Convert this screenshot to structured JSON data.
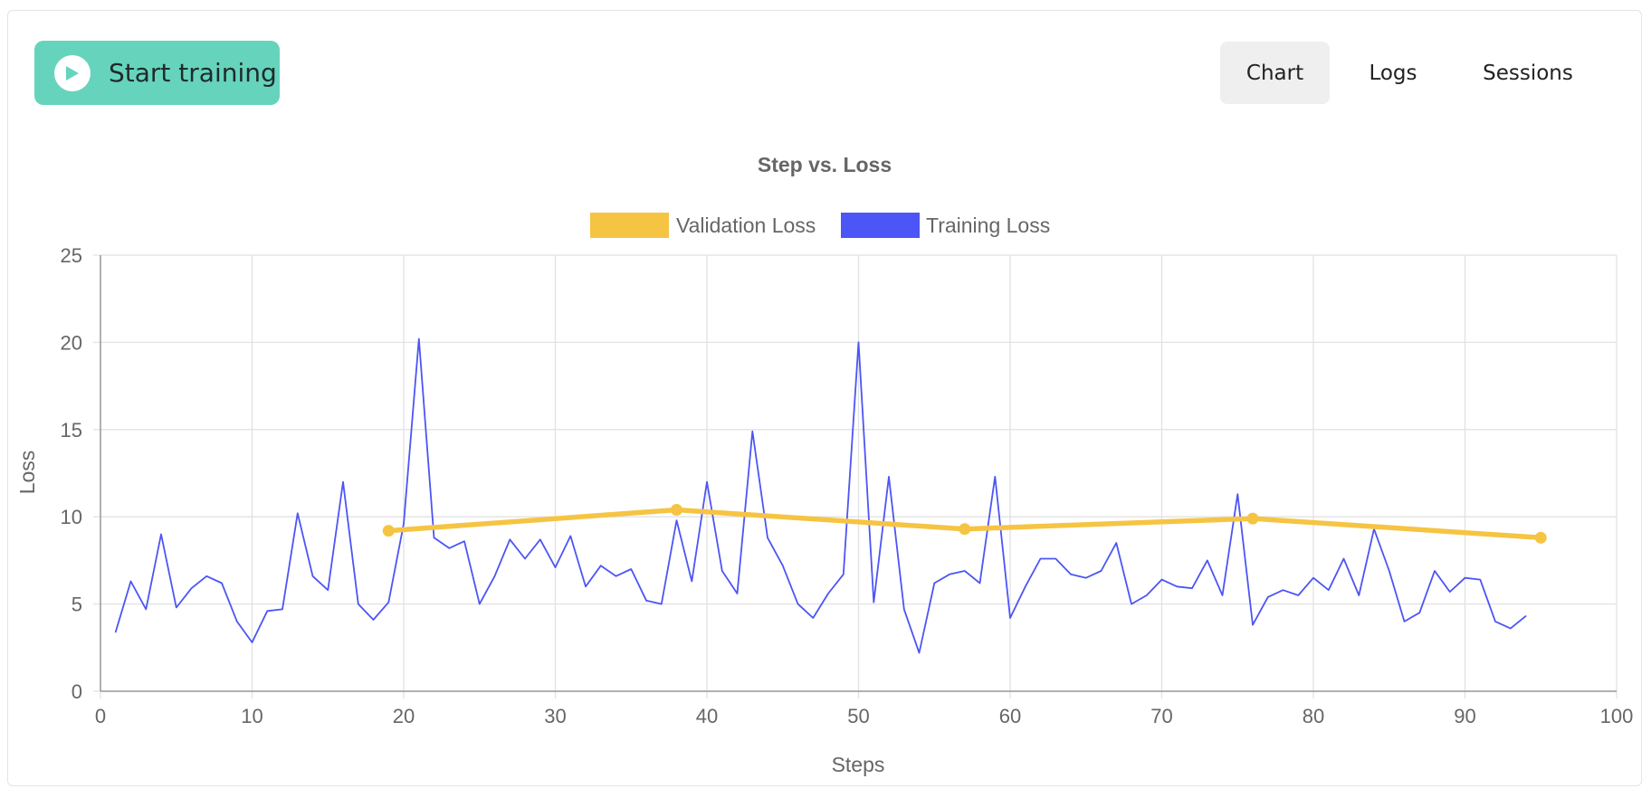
{
  "toolbar": {
    "start_label": "Start training"
  },
  "tabs": [
    {
      "label": "Chart",
      "active": true
    },
    {
      "label": "Logs",
      "active": false
    },
    {
      "label": "Sessions",
      "active": false
    }
  ],
  "colors": {
    "accent": "#66d4bd",
    "validation": "#f6c443",
    "training": "#4c55f5"
  },
  "icons": {
    "start": "play-icon"
  },
  "chart_data": {
    "type": "line",
    "title": "Step vs. Loss",
    "xlabel": "Steps",
    "ylabel": "Loss",
    "xlim": [
      0,
      100
    ],
    "ylim": [
      0,
      25
    ],
    "xticks": [
      0,
      10,
      20,
      30,
      40,
      50,
      60,
      70,
      80,
      90,
      100
    ],
    "yticks": [
      0,
      5,
      10,
      15,
      20,
      25
    ],
    "grid": true,
    "legend": "top-center",
    "series": [
      {
        "name": "Validation Loss",
        "color": "#f6c443",
        "markers": true,
        "x": [
          19,
          38,
          57,
          76,
          95
        ],
        "y": [
          9.2,
          10.4,
          9.3,
          9.9,
          8.8
        ]
      },
      {
        "name": "Training Loss",
        "color": "#4c55f5",
        "markers": false,
        "x": [
          1,
          2,
          3,
          4,
          5,
          6,
          7,
          8,
          9,
          10,
          11,
          12,
          13,
          14,
          15,
          16,
          17,
          18,
          19,
          20,
          21,
          22,
          23,
          24,
          25,
          26,
          27,
          28,
          29,
          30,
          31,
          32,
          33,
          34,
          35,
          36,
          37,
          38,
          39,
          40,
          41,
          42,
          43,
          44,
          45,
          46,
          47,
          48,
          49,
          50,
          51,
          52,
          53,
          54,
          55,
          56,
          57,
          58,
          59,
          60,
          61,
          62,
          63,
          64,
          65,
          66,
          67,
          68,
          69,
          70,
          71,
          72,
          73,
          74,
          75,
          76,
          77,
          78,
          79,
          80,
          81,
          82,
          83,
          84,
          85,
          86,
          87,
          88,
          89,
          90,
          91,
          92,
          93,
          94
        ],
        "y": [
          3.4,
          6.3,
          4.7,
          9.0,
          4.8,
          5.9,
          6.6,
          6.2,
          4.0,
          2.8,
          4.6,
          4.7,
          10.2,
          6.6,
          5.8,
          12.0,
          5.0,
          4.1,
          5.1,
          9.6,
          20.2,
          8.8,
          8.2,
          8.6,
          5.0,
          6.6,
          8.7,
          7.6,
          8.7,
          7.1,
          8.9,
          6.0,
          7.2,
          6.6,
          7.0,
          5.2,
          5.0,
          9.8,
          6.3,
          12.0,
          6.9,
          5.6,
          14.9,
          8.8,
          7.2,
          5.0,
          4.2,
          5.6,
          6.7,
          20.0,
          5.1,
          12.3,
          4.7,
          2.2,
          6.2,
          6.7,
          6.9,
          6.2,
          12.3,
          4.2,
          6.0,
          7.6,
          7.6,
          6.7,
          6.5,
          6.9,
          8.5,
          5.0,
          5.5,
          6.4,
          6.0,
          5.9,
          7.5,
          5.5,
          11.3,
          3.8,
          5.4,
          5.8,
          5.5,
          6.5,
          5.8,
          7.6,
          5.5,
          9.3,
          6.9,
          4.0,
          4.5,
          6.9,
          5.7,
          6.5,
          6.4,
          4.0,
          3.6,
          4.3
        ]
      }
    ]
  }
}
